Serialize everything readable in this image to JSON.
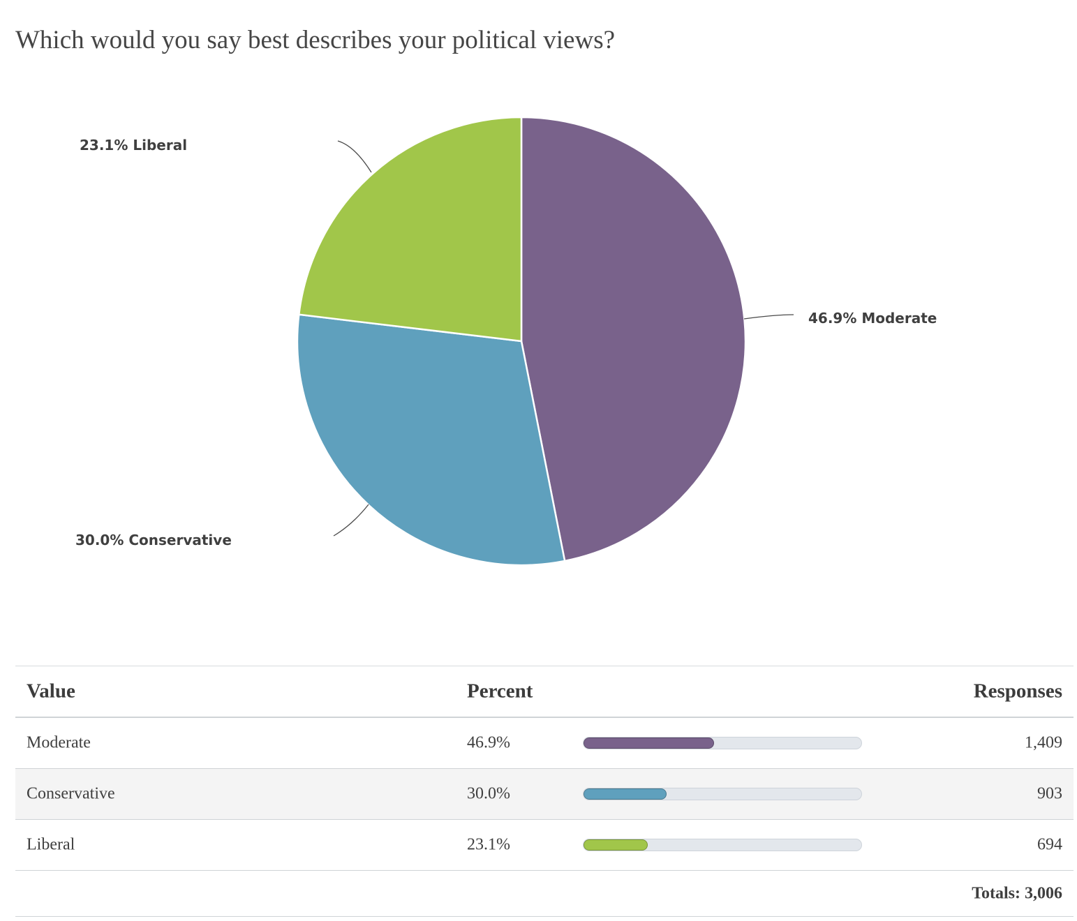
{
  "question": "Which would you say best describes your political views?",
  "colors": {
    "Moderate": "#79628b",
    "Conservative": "#5fa0bd",
    "Liberal": "#a1c64a"
  },
  "chart_data": {
    "type": "pie",
    "title": "Which would you say best describes your political views?",
    "slices": [
      {
        "label": "Moderate",
        "percent": 46.9,
        "display": "46.9% Moderate",
        "color": "#79628b"
      },
      {
        "label": "Conservative",
        "percent": 30.0,
        "display": "30.0% Conservative",
        "color": "#5fa0bd"
      },
      {
        "label": "Liberal",
        "percent": 23.1,
        "display": "23.1% Liberal",
        "color": "#a1c64a"
      }
    ],
    "start": "12 o'clock, clockwise"
  },
  "table": {
    "headers": {
      "value": "Value",
      "percent": "Percent",
      "responses": "Responses"
    },
    "rows": [
      {
        "value": "Moderate",
        "percent": "46.9%",
        "fraction": 0.469,
        "responses": "1,409",
        "color": "#79628b"
      },
      {
        "value": "Conservative",
        "percent": "30.0%",
        "fraction": 0.3,
        "responses": "903",
        "color": "#5fa0bd"
      },
      {
        "value": "Liberal",
        "percent": "23.1%",
        "fraction": 0.231,
        "responses": "694",
        "color": "#a1c64a"
      }
    ],
    "totals": "Totals: 3,006"
  }
}
